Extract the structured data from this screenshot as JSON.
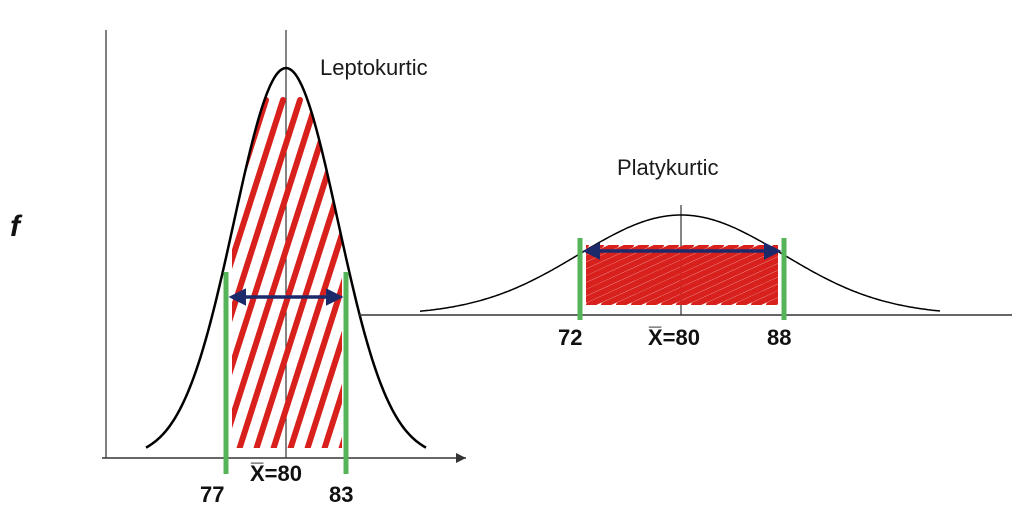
{
  "y_axis_label": "f",
  "colors": {
    "curve": "#000000",
    "hatch": "#d8201c",
    "marker": "#55b35a",
    "arrow": "#1c2a6b"
  },
  "left": {
    "title": "Leptokurtic",
    "mean_label": "X̅=80",
    "lower_label": "77",
    "upper_label": "83",
    "mean": 80,
    "lower": 77,
    "upper": 83
  },
  "right": {
    "title": "Platykurtic",
    "mean_label": "X̅=80",
    "lower_label": "72",
    "upper_label": "88",
    "mean": 80,
    "lower": 72,
    "upper": 88
  }
}
